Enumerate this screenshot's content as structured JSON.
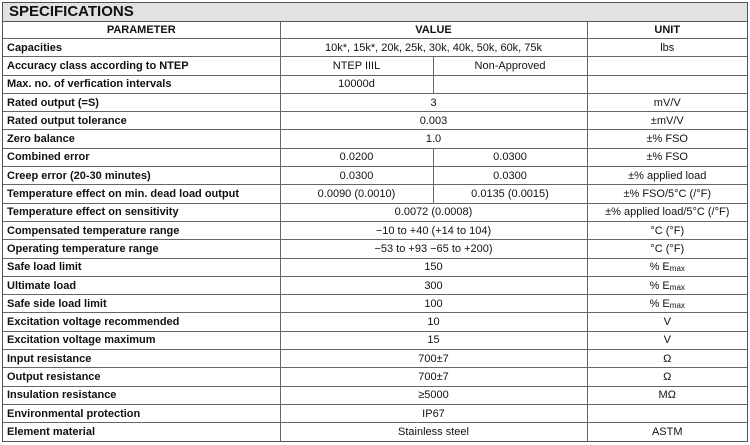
{
  "title": "SPECIFICATIONS",
  "headers": {
    "parameter": "PARAMETER",
    "value": "VALUE",
    "unit": "UNIT"
  },
  "rows": [
    {
      "param": "Capacities",
      "value": "10k*, 15k*, 20k, 25k, 30k, 40k, 50k, 60k, 75k",
      "unit": "lbs"
    },
    {
      "param": "Accuracy class according to NTEP",
      "value1": "NTEP IIIL",
      "value2": "Non-Approved",
      "unit": ""
    },
    {
      "param": "Max. no. of verfication intervals",
      "value1": "10000d",
      "value2": "",
      "unit": ""
    },
    {
      "param": "Rated output (=S)",
      "value": "3",
      "unit": "mV/V"
    },
    {
      "param": "Rated output tolerance",
      "value": "0.003",
      "unit": "±mV/V"
    },
    {
      "param": "Zero balance",
      "value": "1.0",
      "unit": "±% FSO"
    },
    {
      "param": "Combined error",
      "value1": "0.0200",
      "value2": "0.0300",
      "unit": "±% FSO"
    },
    {
      "param": "Creep error (20-30 minutes)",
      "value1": "0.0300",
      "value2": "0.0300",
      "unit": "±% applied load"
    },
    {
      "param": "Temperature effect on min. dead load output",
      "value1": "0.0090 (0.0010)",
      "value2": "0.0135 (0.0015)",
      "unit": "±% FSO/5°C (/°F)"
    },
    {
      "param": "Temperature effect on sensitivity",
      "value": "0.0072 (0.0008)",
      "unit": "±% applied load/5°C (/°F)"
    },
    {
      "param": "Compensated temperature range",
      "value": "−10 to +40 (+14 to 104)",
      "unit": "°C (°F)"
    },
    {
      "param": "Operating temperature range",
      "value": "−53 to +93 −65 to +200)",
      "unit": "°C (°F)"
    },
    {
      "param": "Safe load limit",
      "value": "150",
      "unit": "% E",
      "unit_sub": "max"
    },
    {
      "param": "Ultimate load",
      "value": "300",
      "unit": "% E",
      "unit_sub": "max"
    },
    {
      "param": "Safe side load limit",
      "value": "100",
      "unit": "% E",
      "unit_sub": "max"
    },
    {
      "param": "Excitation voltage recommended",
      "value": "10",
      "unit": "V"
    },
    {
      "param": "Excitation voltage maximum",
      "value": "15",
      "unit": "V"
    },
    {
      "param": "Input resistance",
      "value": "700±7",
      "unit": "Ω"
    },
    {
      "param": "Output resistance",
      "value": "700±7",
      "unit": "Ω"
    },
    {
      "param": "Insulation resistance",
      "value": "≥5000",
      "unit": "MΩ"
    },
    {
      "param": "Environmental protection",
      "value": "IP67",
      "unit": ""
    },
    {
      "param": "Element material",
      "value": "Stainless steel",
      "unit": "ASTM"
    }
  ]
}
